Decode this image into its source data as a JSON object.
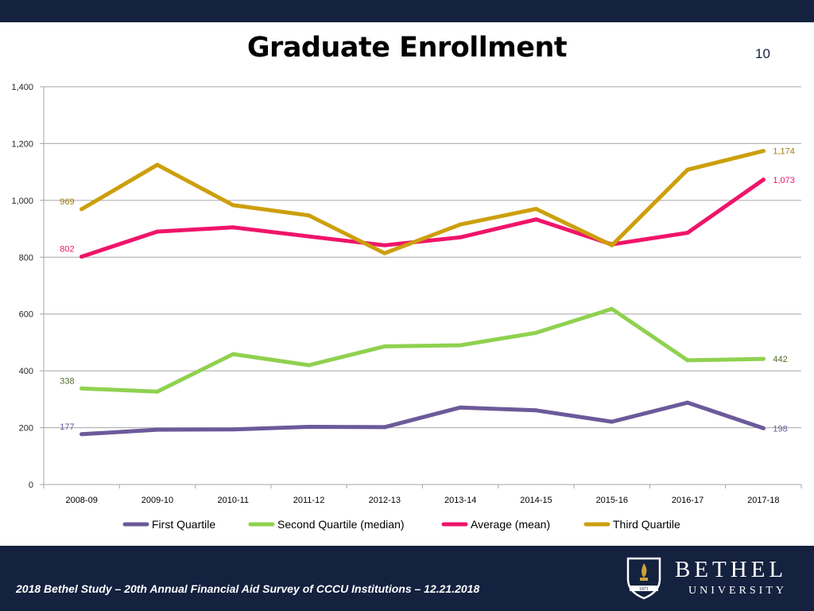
{
  "slide": {
    "title": "Graduate Enrollment",
    "footer": "2018 Bethel Study – 20th Annual Financial Aid Survey of CCCU Institutions – 12.21.2018",
    "page_number": "10",
    "logo_name": "BETHEL",
    "logo_sub": "UNIVERSITY",
    "logo_badge": "1871",
    "colors": {
      "band": "#14213f",
      "logo_gold": "#c9a23a"
    }
  },
  "chart_data": {
    "type": "line",
    "title": "Graduate Enrollment",
    "categories": [
      "2008-09",
      "2009-10",
      "2010-11",
      "2011-12",
      "2012-13",
      "2013-14",
      "2014-15",
      "2015-16",
      "2016-17",
      "2017-18"
    ],
    "ylim": [
      0,
      1400
    ],
    "yticks": [
      0,
      200,
      400,
      600,
      800,
      1000,
      1200,
      1400
    ],
    "ytick_labels": [
      "0",
      "200",
      "400",
      "600",
      "800",
      "1,000",
      "1,200",
      "1,400"
    ],
    "grid": true,
    "legend_position": "bottom",
    "series": [
      {
        "name": "First Quartile",
        "color": "#6b5a9a",
        "values": [
          177,
          193,
          194,
          203,
          202,
          271,
          261,
          221,
          288,
          198
        ],
        "labels": [
          {
            "index": 0,
            "text": "177"
          },
          {
            "index": 9,
            "text": "198"
          }
        ]
      },
      {
        "name": "Second Quartile (median)",
        "color": "#8fd14f",
        "values": [
          338,
          327,
          459,
          420,
          486,
          490,
          534,
          618,
          437,
          442
        ],
        "labels": [
          {
            "index": 0,
            "text": "338"
          },
          {
            "index": 9,
            "text": "442"
          }
        ]
      },
      {
        "name": "Average (mean)",
        "color": "#f0146a",
        "values": [
          802,
          890,
          905,
          873,
          842,
          870,
          933,
          845,
          886,
          1073
        ],
        "labels": [
          {
            "index": 0,
            "text": "802"
          },
          {
            "index": 9,
            "text": "1,073"
          }
        ]
      },
      {
        "name": "Third Quartile",
        "color": "#cc9f0c",
        "values": [
          969,
          1125,
          983,
          947,
          814,
          915,
          970,
          842,
          1108,
          1174
        ],
        "labels": [
          {
            "index": 0,
            "text": "969"
          },
          {
            "index": 9,
            "text": "1,174"
          }
        ]
      }
    ]
  }
}
